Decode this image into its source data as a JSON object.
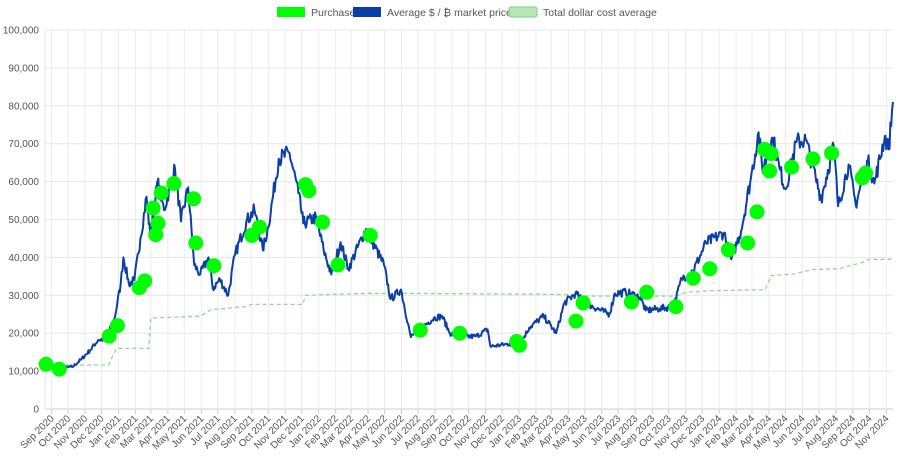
{
  "chart_data": {
    "type": "line",
    "y_range": [
      0,
      100000
    ],
    "y_ticks": [
      0,
      10000,
      20000,
      30000,
      40000,
      50000,
      60000,
      70000,
      80000,
      90000,
      100000
    ],
    "y_tick_labels": [
      "0",
      "10,000",
      "20,000",
      "30,000",
      "40,000",
      "50,000",
      "60,000",
      "70,000",
      "80,000",
      "90,000",
      "100,000"
    ],
    "x_range": [
      "2020-08-20",
      "2024-11-13"
    ],
    "x_ticks": [
      "2020-09-01",
      "2020-10-01",
      "2020-11-01",
      "2020-12-01",
      "2021-01-01",
      "2021-02-01",
      "2021-03-01",
      "2021-04-01",
      "2021-05-01",
      "2021-06-01",
      "2021-07-01",
      "2021-08-01",
      "2021-09-01",
      "2021-10-01",
      "2021-11-01",
      "2021-12-01",
      "2022-01-01",
      "2022-02-01",
      "2022-03-01",
      "2022-04-01",
      "2022-05-01",
      "2022-06-01",
      "2022-07-01",
      "2022-08-01",
      "2022-09-01",
      "2022-10-01",
      "2022-11-01",
      "2022-12-01",
      "2023-01-01",
      "2023-02-01",
      "2023-03-01",
      "2023-04-01",
      "2023-05-01",
      "2023-06-01",
      "2023-07-01",
      "2023-08-01",
      "2023-09-01",
      "2023-10-01",
      "2023-11-01",
      "2023-12-01",
      "2024-01-01",
      "2024-02-01",
      "2024-03-01",
      "2024-04-01",
      "2024-05-01",
      "2024-06-01",
      "2024-07-01",
      "2024-08-01",
      "2024-09-01",
      "2024-10-01",
      "2024-11-01"
    ],
    "x_tick_labels": [
      "Sep 2020",
      "Oct 2020",
      "Nov 2020",
      "Dec 2020",
      "Jan 2021",
      "Feb 2021",
      "Mar 2021",
      "Apr 2021",
      "May 2021",
      "Jun 2021",
      "Jul 2021",
      "Aug 2021",
      "Sep 2021",
      "Oct 2021",
      "Nov 2021",
      "Dec 2021",
      "Jan 2022",
      "Feb 2022",
      "Mar 2022",
      "Apr 2022",
      "May 2022",
      "Jun 2022",
      "Jul 2022",
      "Aug 2022",
      "Sep 2022",
      "Oct 2022",
      "Nov 2022",
      "Dec 2022",
      "Jan 2023",
      "Feb 2023",
      "Mar 2023",
      "Apr 2023",
      "May 2023",
      "Jun 2023",
      "Jul 2023",
      "Aug 2023",
      "Sep 2023",
      "Oct 2023",
      "Nov 2023",
      "Dec 2023",
      "Jan 2024",
      "Feb 2024",
      "Mar 2024",
      "Apr 2024",
      "May 2024",
      "Jun 2024",
      "Jul 2024",
      "Aug 2024",
      "Sep 2024",
      "Oct 2024",
      "Nov 2024"
    ],
    "grid": true,
    "legend_position": "top-center",
    "series": [
      {
        "name": "Purchases",
        "kind": "scatter",
        "color": "#00ff00",
        "points": [
          {
            "x": "2020-08-22",
            "y": 11800
          },
          {
            "x": "2020-09-15",
            "y": 10500
          },
          {
            "x": "2020-12-15",
            "y": 19200
          },
          {
            "x": "2020-12-30",
            "y": 22000
          },
          {
            "x": "2021-02-08",
            "y": 32000
          },
          {
            "x": "2021-02-18",
            "y": 33800
          },
          {
            "x": "2021-03-05",
            "y": 53000
          },
          {
            "x": "2021-03-10",
            "y": 46000
          },
          {
            "x": "2021-03-14",
            "y": 49000
          },
          {
            "x": "2021-03-20",
            "y": 57000
          },
          {
            "x": "2021-04-12",
            "y": 59500
          },
          {
            "x": "2021-05-18",
            "y": 55500
          },
          {
            "x": "2021-05-22",
            "y": 43800
          },
          {
            "x": "2021-06-24",
            "y": 37800
          },
          {
            "x": "2021-09-01",
            "y": 45800
          },
          {
            "x": "2021-09-15",
            "y": 48000
          },
          {
            "x": "2021-12-08",
            "y": 59200
          },
          {
            "x": "2021-12-14",
            "y": 57600
          },
          {
            "x": "2022-01-08",
            "y": 49300
          },
          {
            "x": "2022-02-05",
            "y": 38000
          },
          {
            "x": "2022-04-05",
            "y": 45800
          },
          {
            "x": "2022-07-05",
            "y": 20800
          },
          {
            "x": "2022-09-15",
            "y": 20000
          },
          {
            "x": "2022-12-28",
            "y": 17800
          },
          {
            "x": "2023-01-02",
            "y": 16800
          },
          {
            "x": "2023-04-15",
            "y": 23200
          },
          {
            "x": "2023-04-28",
            "y": 28000
          },
          {
            "x": "2023-07-25",
            "y": 28200
          },
          {
            "x": "2023-08-22",
            "y": 30800
          },
          {
            "x": "2023-10-14",
            "y": 27000
          },
          {
            "x": "2023-11-15",
            "y": 34500
          },
          {
            "x": "2023-12-15",
            "y": 37000
          },
          {
            "x": "2024-01-18",
            "y": 42000
          },
          {
            "x": "2024-02-22",
            "y": 43800
          },
          {
            "x": "2024-03-10",
            "y": 52000
          },
          {
            "x": "2024-03-24",
            "y": 68500
          },
          {
            "x": "2024-04-02",
            "y": 62800
          },
          {
            "x": "2024-04-05",
            "y": 67400
          },
          {
            "x": "2024-05-12",
            "y": 63800
          },
          {
            "x": "2024-06-20",
            "y": 66000
          },
          {
            "x": "2024-07-24",
            "y": 67500
          },
          {
            "x": "2024-09-18",
            "y": 61000
          },
          {
            "x": "2024-09-24",
            "y": 62200
          }
        ]
      },
      {
        "name": "Average $ / ₿ market price",
        "kind": "line",
        "color": "#0b3fa6",
        "points": [
          {
            "x": "2020-08-20",
            "y": 11900
          },
          {
            "x": "2020-09-05",
            "y": 10400
          },
          {
            "x": "2020-09-20",
            "y": 10700
          },
          {
            "x": "2020-10-10",
            "y": 11200
          },
          {
            "x": "2020-10-25",
            "y": 13100
          },
          {
            "x": "2020-11-10",
            "y": 15500
          },
          {
            "x": "2020-11-25",
            "y": 18200
          },
          {
            "x": "2020-12-10",
            "y": 18500
          },
          {
            "x": "2020-12-25",
            "y": 24000
          },
          {
            "x": "2021-01-05",
            "y": 33000
          },
          {
            "x": "2021-01-10",
            "y": 40000
          },
          {
            "x": "2021-01-20",
            "y": 33000
          },
          {
            "x": "2021-01-30",
            "y": 34000
          },
          {
            "x": "2021-02-10",
            "y": 45000
          },
          {
            "x": "2021-02-21",
            "y": 56000
          },
          {
            "x": "2021-02-28",
            "y": 45500
          },
          {
            "x": "2021-03-13",
            "y": 60000
          },
          {
            "x": "2021-03-25",
            "y": 52500
          },
          {
            "x": "2021-04-14",
            "y": 63500
          },
          {
            "x": "2021-04-25",
            "y": 49500
          },
          {
            "x": "2021-05-08",
            "y": 58500
          },
          {
            "x": "2021-05-19",
            "y": 38000
          },
          {
            "x": "2021-05-30",
            "y": 35500
          },
          {
            "x": "2021-06-14",
            "y": 40000
          },
          {
            "x": "2021-06-22",
            "y": 31800
          },
          {
            "x": "2021-07-05",
            "y": 34200
          },
          {
            "x": "2021-07-20",
            "y": 30000
          },
          {
            "x": "2021-08-01",
            "y": 40500
          },
          {
            "x": "2021-08-22",
            "y": 49500
          },
          {
            "x": "2021-09-06",
            "y": 52500
          },
          {
            "x": "2021-09-21",
            "y": 42000
          },
          {
            "x": "2021-10-01",
            "y": 48000
          },
          {
            "x": "2021-10-20",
            "y": 66000
          },
          {
            "x": "2021-11-09",
            "y": 67500
          },
          {
            "x": "2021-11-25",
            "y": 57000
          },
          {
            "x": "2021-12-04",
            "y": 49000
          },
          {
            "x": "2021-12-27",
            "y": 50500
          },
          {
            "x": "2022-01-10",
            "y": 42000
          },
          {
            "x": "2022-01-24",
            "y": 35500
          },
          {
            "x": "2022-02-10",
            "y": 44000
          },
          {
            "x": "2022-02-24",
            "y": 37000
          },
          {
            "x": "2022-03-28",
            "y": 47500
          },
          {
            "x": "2022-04-30",
            "y": 38000
          },
          {
            "x": "2022-05-12",
            "y": 29000
          },
          {
            "x": "2022-05-31",
            "y": 31500
          },
          {
            "x": "2022-06-13",
            "y": 22500
          },
          {
            "x": "2022-06-18",
            "y": 19000
          },
          {
            "x": "2022-07-08",
            "y": 21500
          },
          {
            "x": "2022-07-30",
            "y": 24000
          },
          {
            "x": "2022-08-14",
            "y": 24500
          },
          {
            "x": "2022-08-28",
            "y": 20000
          },
          {
            "x": "2022-09-20",
            "y": 19000
          },
          {
            "x": "2022-10-15",
            "y": 19200
          },
          {
            "x": "2022-11-05",
            "y": 21000
          },
          {
            "x": "2022-11-10",
            "y": 16500
          },
          {
            "x": "2022-12-15",
            "y": 17200
          },
          {
            "x": "2023-01-01",
            "y": 16600
          },
          {
            "x": "2023-01-20",
            "y": 21500
          },
          {
            "x": "2023-02-15",
            "y": 24500
          },
          {
            "x": "2023-03-10",
            "y": 20000
          },
          {
            "x": "2023-03-25",
            "y": 28000
          },
          {
            "x": "2023-04-14",
            "y": 30500
          },
          {
            "x": "2023-05-01",
            "y": 28000
          },
          {
            "x": "2023-06-15",
            "y": 25000
          },
          {
            "x": "2023-06-25",
            "y": 30500
          },
          {
            "x": "2023-07-15",
            "y": 30800
          },
          {
            "x": "2023-08-10",
            "y": 29500
          },
          {
            "x": "2023-08-20",
            "y": 26000
          },
          {
            "x": "2023-09-15",
            "y": 26500
          },
          {
            "x": "2023-10-10",
            "y": 27000
          },
          {
            "x": "2023-10-25",
            "y": 34500
          },
          {
            "x": "2023-11-15",
            "y": 36500
          },
          {
            "x": "2023-12-08",
            "y": 43800
          },
          {
            "x": "2024-01-10",
            "y": 46500
          },
          {
            "x": "2024-01-23",
            "y": 39500
          },
          {
            "x": "2024-02-10",
            "y": 47000
          },
          {
            "x": "2024-02-28",
            "y": 61000
          },
          {
            "x": "2024-03-13",
            "y": 73000
          },
          {
            "x": "2024-03-20",
            "y": 63000
          },
          {
            "x": "2024-04-08",
            "y": 71500
          },
          {
            "x": "2024-04-20",
            "y": 63500
          },
          {
            "x": "2024-05-01",
            "y": 58000
          },
          {
            "x": "2024-05-21",
            "y": 70500
          },
          {
            "x": "2024-06-07",
            "y": 71000
          },
          {
            "x": "2024-06-25",
            "y": 61000
          },
          {
            "x": "2024-07-05",
            "y": 55500
          },
          {
            "x": "2024-07-28",
            "y": 69500
          },
          {
            "x": "2024-08-05",
            "y": 53500
          },
          {
            "x": "2024-08-24",
            "y": 64500
          },
          {
            "x": "2024-09-06",
            "y": 54000
          },
          {
            "x": "2024-09-28",
            "y": 65500
          },
          {
            "x": "2024-10-10",
            "y": 59500
          },
          {
            "x": "2024-10-29",
            "y": 72000
          },
          {
            "x": "2024-11-05",
            "y": 68500
          },
          {
            "x": "2024-11-13",
            "y": 81000
          }
        ]
      },
      {
        "name": "Total dollar cost average",
        "kind": "dashed-step",
        "color": "#90d890",
        "points": [
          {
            "x": "2020-08-20",
            "y": 11600
          },
          {
            "x": "2020-12-14",
            "y": 11600
          },
          {
            "x": "2020-12-28",
            "y": 16000
          },
          {
            "x": "2021-02-25",
            "y": 16000
          },
          {
            "x": "2021-03-01",
            "y": 24000
          },
          {
            "x": "2021-05-31",
            "y": 24500
          },
          {
            "x": "2021-06-18",
            "y": 26200
          },
          {
            "x": "2021-08-20",
            "y": 27000
          },
          {
            "x": "2021-09-01",
            "y": 27600
          },
          {
            "x": "2021-12-03",
            "y": 27600
          },
          {
            "x": "2021-12-08",
            "y": 30000
          },
          {
            "x": "2022-03-30",
            "y": 30500
          },
          {
            "x": "2022-07-01",
            "y": 30500
          },
          {
            "x": "2023-04-01",
            "y": 30200
          },
          {
            "x": "2023-04-10",
            "y": 29800
          },
          {
            "x": "2023-10-15",
            "y": 29800
          },
          {
            "x": "2023-11-01",
            "y": 30800
          },
          {
            "x": "2023-12-15",
            "y": 31200
          },
          {
            "x": "2024-03-25",
            "y": 31500
          },
          {
            "x": "2024-04-05",
            "y": 35200
          },
          {
            "x": "2024-05-15",
            "y": 35600
          },
          {
            "x": "2024-06-20",
            "y": 36800
          },
          {
            "x": "2024-08-05",
            "y": 37000
          },
          {
            "x": "2024-09-15",
            "y": 38500
          },
          {
            "x": "2024-10-01",
            "y": 39500
          },
          {
            "x": "2024-11-13",
            "y": 39500
          }
        ]
      }
    ]
  }
}
